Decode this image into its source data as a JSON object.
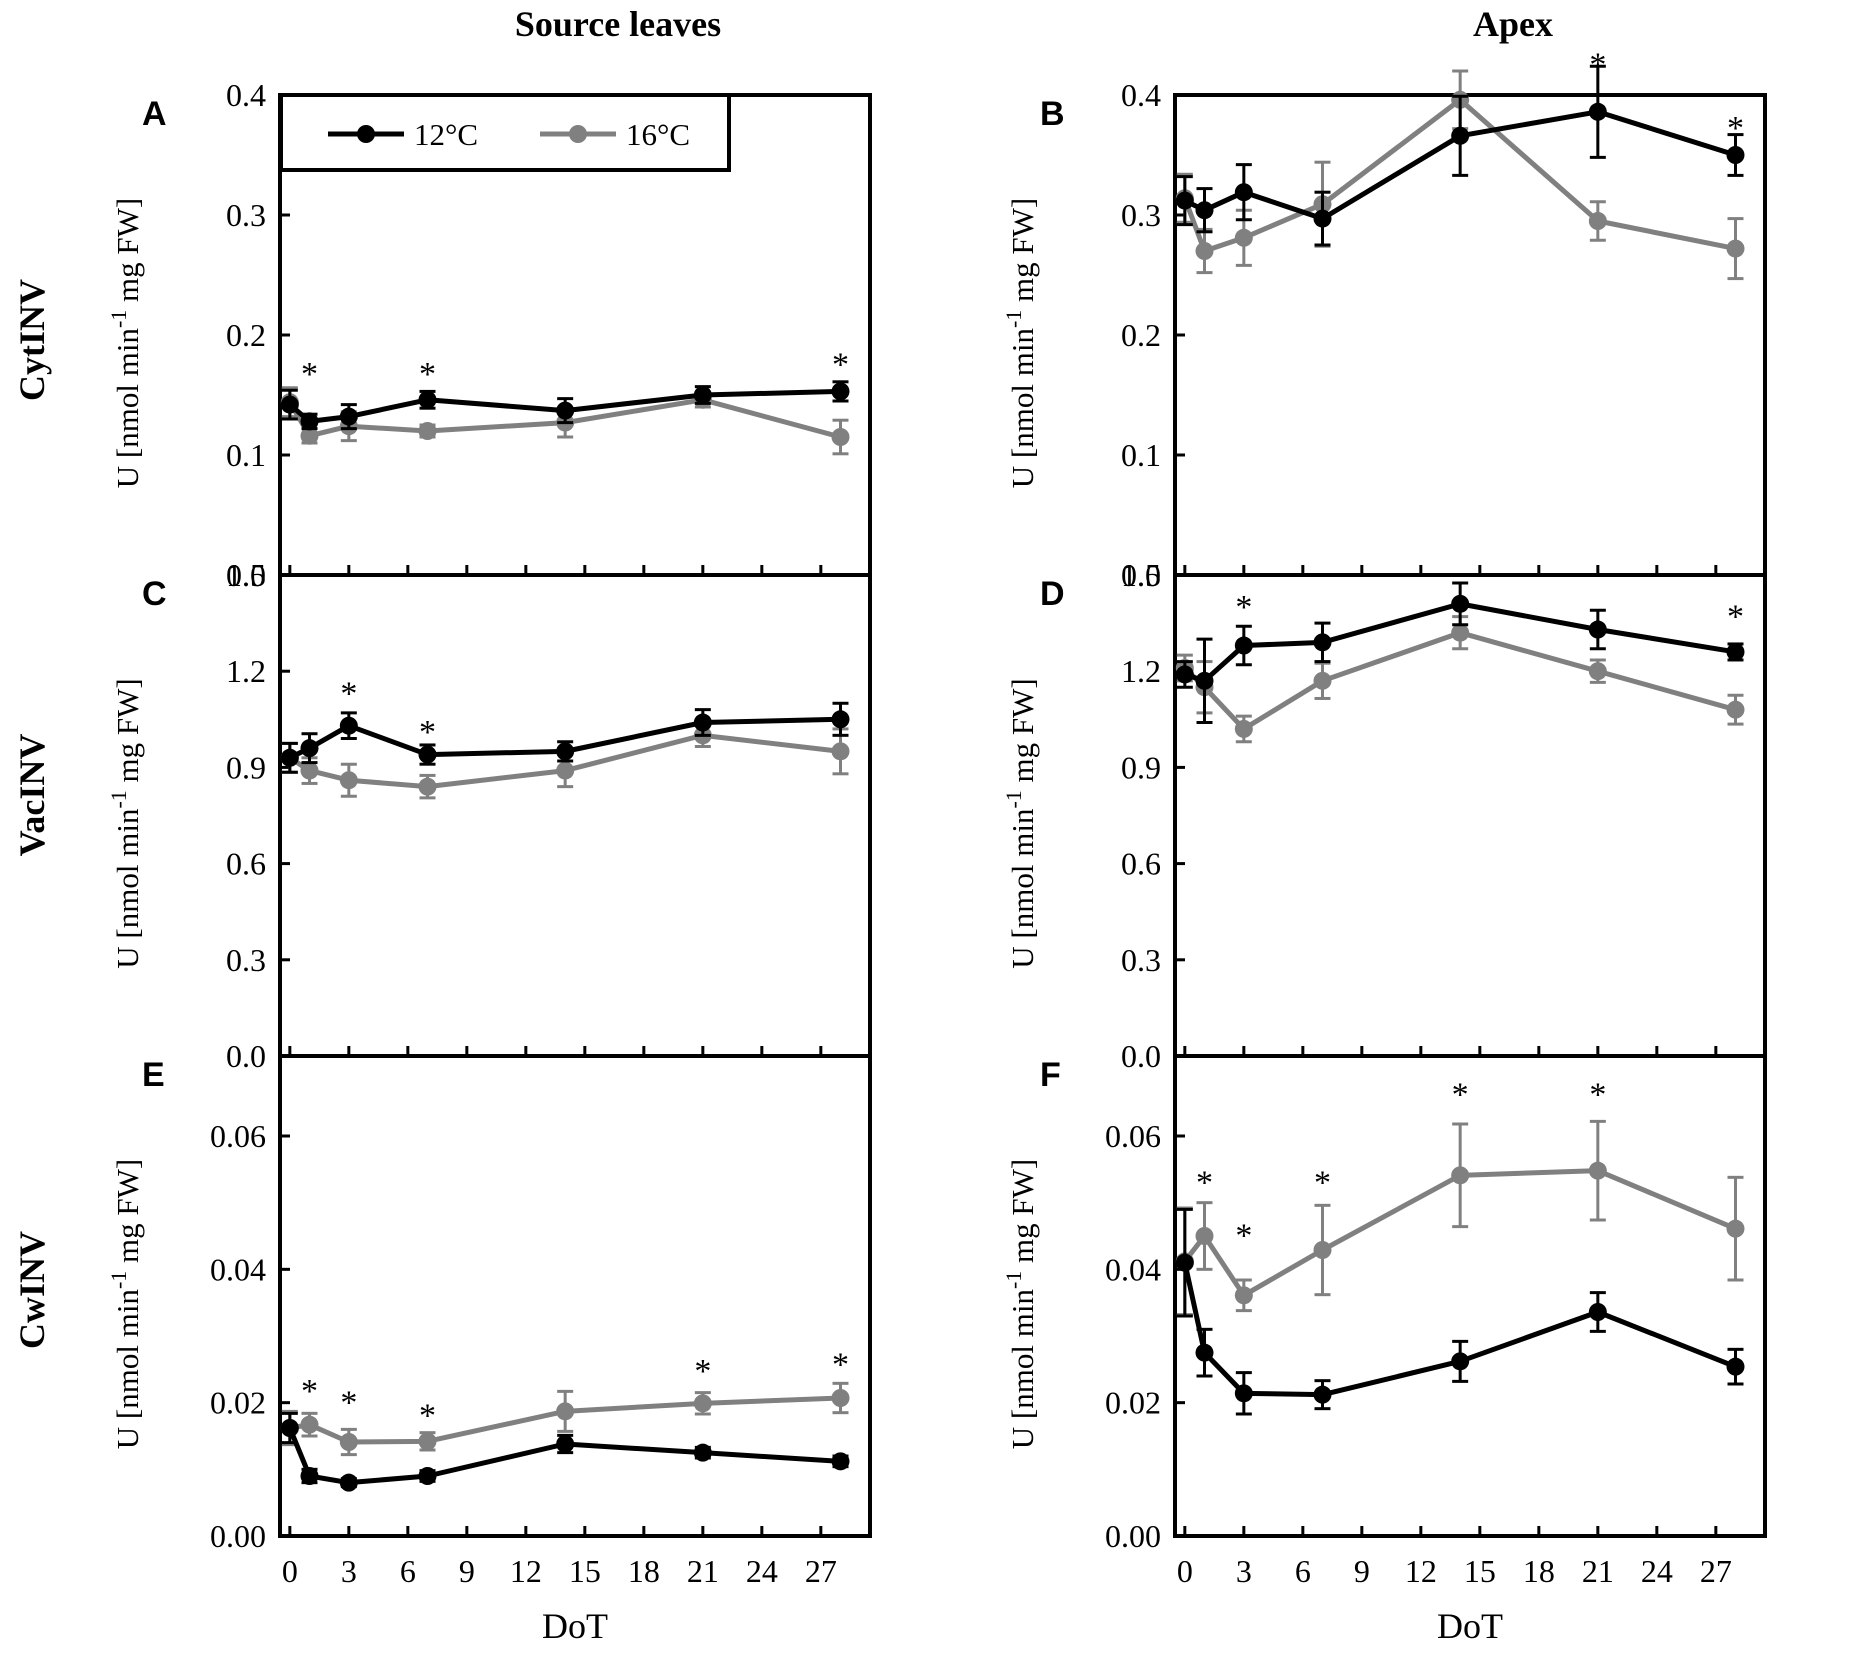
{
  "figure": {
    "column_titles": [
      "Source leaves",
      "Apex"
    ],
    "row_titles": [
      "CytINV",
      "VacINV",
      "CwINV"
    ],
    "legend": [
      {
        "label": "12°C",
        "color": "#000000"
      },
      {
        "label": "16°C",
        "color": "#808080"
      }
    ],
    "colors": {
      "series_12": "#000000",
      "series_16": "#808080"
    }
  },
  "chart_data": [
    {
      "type": "line",
      "panel": "A",
      "ylabel": "U [nmol min-1 mg FW]",
      "xlabel": "",
      "x": [
        0,
        1,
        3,
        7,
        14,
        21,
        28
      ],
      "xlim": [
        -0.5,
        29.5
      ],
      "ylim": [
        0,
        0.4
      ],
      "xticks": [
        "0",
        "3",
        "6",
        "9",
        "12",
        "15",
        "18",
        "21",
        "24",
        "27"
      ],
      "yticks": [
        "0.0",
        "0.1",
        "0.2",
        "0.3",
        "0.4"
      ],
      "series": [
        {
          "name": "12°C",
          "values": [
            0.142,
            0.128,
            0.132,
            0.146,
            0.137,
            0.15,
            0.153
          ],
          "errors": [
            0.012,
            0.006,
            0.01,
            0.007,
            0.01,
            0.007,
            0.008
          ]
        },
        {
          "name": "16°C",
          "values": [
            0.144,
            0.116,
            0.124,
            0.12,
            0.127,
            0.146,
            0.115
          ],
          "errors": [
            0.012,
            0.006,
            0.012,
            0.005,
            0.012,
            0.006,
            0.014
          ]
        }
      ],
      "significance": [
        {
          "x": 1,
          "y": 0.17,
          "label": "*"
        },
        {
          "x": 7,
          "y": 0.17,
          "label": "*"
        },
        {
          "x": 28,
          "y": 0.178,
          "label": "*"
        }
      ]
    },
    {
      "type": "line",
      "panel": "B",
      "ylabel": "U [nmol min-1 mg FW]",
      "xlabel": "",
      "x": [
        0,
        1,
        3,
        7,
        14,
        21,
        28
      ],
      "xlim": [
        -0.5,
        29.5
      ],
      "ylim": [
        0,
        0.4
      ],
      "xticks": [
        "0",
        "3",
        "6",
        "9",
        "12",
        "15",
        "18",
        "21",
        "24",
        "27"
      ],
      "yticks": [
        "0.0",
        "0.1",
        "0.2",
        "0.3",
        "0.4"
      ],
      "series": [
        {
          "name": "12°C",
          "values": [
            0.312,
            0.304,
            0.319,
            0.297,
            0.366,
            0.386,
            0.35
          ],
          "errors": [
            0.02,
            0.018,
            0.023,
            0.022,
            0.033,
            0.038,
            0.017
          ]
        },
        {
          "name": "16°C",
          "values": [
            0.314,
            0.27,
            0.281,
            0.309,
            0.396,
            0.295,
            0.272
          ],
          "errors": [
            0.02,
            0.018,
            0.023,
            0.035,
            0.024,
            0.016,
            0.025
          ]
        }
      ],
      "significance": [
        {
          "x": 21,
          "y": 0.428,
          "label": "*"
        },
        {
          "x": 28,
          "y": 0.375,
          "label": "*"
        }
      ]
    },
    {
      "type": "line",
      "panel": "C",
      "ylabel": "U [nmol min-1 mg FW]",
      "xlabel": "",
      "x": [
        0,
        1,
        3,
        7,
        14,
        21,
        28
      ],
      "xlim": [
        -0.5,
        29.5
      ],
      "ylim": [
        0,
        1.5
      ],
      "xticks": [
        "0",
        "3",
        "6",
        "9",
        "12",
        "15",
        "18",
        "21",
        "24",
        "27"
      ],
      "yticks": [
        "0.0",
        "0.3",
        "0.6",
        "0.9",
        "1.2",
        "1.5"
      ],
      "series": [
        {
          "name": "12°C",
          "values": [
            0.93,
            0.96,
            1.03,
            0.94,
            0.95,
            1.04,
            1.05
          ],
          "errors": [
            0.045,
            0.045,
            0.04,
            0.03,
            0.03,
            0.04,
            0.05
          ]
        },
        {
          "name": "16°C",
          "values": [
            0.93,
            0.89,
            0.86,
            0.84,
            0.89,
            1.0,
            0.95
          ],
          "errors": [
            0.045,
            0.04,
            0.05,
            0.035,
            0.05,
            0.035,
            0.07
          ]
        }
      ],
      "significance": [
        {
          "x": 3,
          "y": 1.14,
          "label": "*"
        },
        {
          "x": 7,
          "y": 1.02,
          "label": "*"
        }
      ]
    },
    {
      "type": "line",
      "panel": "D",
      "ylabel": "U [nmol min-1 mg FW]",
      "xlabel": "",
      "x": [
        0,
        1,
        3,
        7,
        14,
        21,
        28
      ],
      "xlim": [
        -0.5,
        29.5
      ],
      "ylim": [
        0,
        1.5
      ],
      "xticks": [
        "0",
        "3",
        "6",
        "9",
        "12",
        "15",
        "18",
        "21",
        "24",
        "27"
      ],
      "yticks": [
        "0.0",
        "0.3",
        "0.6",
        "0.9",
        "1.2",
        "1.5"
      ],
      "series": [
        {
          "name": "12°C",
          "values": [
            1.19,
            1.17,
            1.28,
            1.29,
            1.41,
            1.33,
            1.26
          ],
          "errors": [
            0.04,
            0.13,
            0.06,
            0.06,
            0.065,
            0.06,
            0.025
          ]
        },
        {
          "name": "16°C",
          "values": [
            1.21,
            1.15,
            1.02,
            1.17,
            1.32,
            1.2,
            1.08
          ],
          "errors": [
            0.04,
            0.08,
            0.04,
            0.055,
            0.05,
            0.035,
            0.045
          ]
        }
      ],
      "significance": [
        {
          "x": 3,
          "y": 1.41,
          "label": "*"
        },
        {
          "x": 28,
          "y": 1.38,
          "label": "*"
        }
      ]
    },
    {
      "type": "line",
      "panel": "E",
      "ylabel": "U [nmol min-1 mg FW]",
      "xlabel": "DoT",
      "x": [
        0,
        1,
        3,
        7,
        14,
        21,
        28
      ],
      "xlim": [
        -0.5,
        29.5
      ],
      "ylim": [
        0,
        0.072
      ],
      "xticks": [
        "0",
        "3",
        "6",
        "9",
        "12",
        "15",
        "18",
        "21",
        "24",
        "27"
      ],
      "yticks": [
        "0.00",
        "0.02",
        "0.04",
        "0.06"
      ],
      "series": [
        {
          "name": "12°C",
          "values": [
            0.0162,
            0.009,
            0.008,
            0.009,
            0.0138,
            0.0125,
            0.0112
          ],
          "errors": [
            0.0022,
            0.001,
            0.0006,
            0.0008,
            0.0013,
            0.0008,
            0.0008
          ]
        },
        {
          "name": "16°C",
          "values": [
            0.0162,
            0.0167,
            0.0141,
            0.0142,
            0.0187,
            0.0199,
            0.0207
          ],
          "errors": [
            0.0025,
            0.0017,
            0.0019,
            0.0013,
            0.003,
            0.0016,
            0.0022
          ]
        }
      ],
      "significance": [
        {
          "x": 1,
          "y": 0.0222,
          "label": "*"
        },
        {
          "x": 3,
          "y": 0.0205,
          "label": "*"
        },
        {
          "x": 7,
          "y": 0.0185,
          "label": "*"
        },
        {
          "x": 21,
          "y": 0.0252,
          "label": "*"
        },
        {
          "x": 28,
          "y": 0.0262,
          "label": "*"
        }
      ]
    },
    {
      "type": "line",
      "panel": "F",
      "ylabel": "U [nmol min-1 mg FW]",
      "xlabel": "DoT",
      "x": [
        0,
        1,
        3,
        7,
        14,
        21,
        28
      ],
      "xlim": [
        -0.5,
        29.5
      ],
      "ylim": [
        0,
        0.072
      ],
      "xticks": [
        "0",
        "3",
        "6",
        "9",
        "12",
        "15",
        "18",
        "21",
        "24",
        "27"
      ],
      "yticks": [
        "0.00",
        "0.02",
        "0.04",
        "0.06"
      ],
      "series": [
        {
          "name": "12°C",
          "values": [
            0.041,
            0.0275,
            0.0214,
            0.0212,
            0.0262,
            0.0336,
            0.0254
          ],
          "errors": [
            0.008,
            0.0035,
            0.0031,
            0.0021,
            0.003,
            0.0029,
            0.0026
          ]
        },
        {
          "name": "16°C",
          "values": [
            0.0412,
            0.045,
            0.0361,
            0.0429,
            0.0541,
            0.0548,
            0.0461
          ],
          "errors": [
            0.008,
            0.005,
            0.0023,
            0.0067,
            0.0077,
            0.0074,
            0.0077
          ]
        }
      ],
      "significance": [
        {
          "x": 1,
          "y": 0.0535,
          "label": "*"
        },
        {
          "x": 3,
          "y": 0.0455,
          "label": "*"
        },
        {
          "x": 7,
          "y": 0.0535,
          "label": "*"
        },
        {
          "x": 14,
          "y": 0.0667,
          "label": "*"
        },
        {
          "x": 21,
          "y": 0.0667,
          "label": "*"
        }
      ]
    }
  ]
}
